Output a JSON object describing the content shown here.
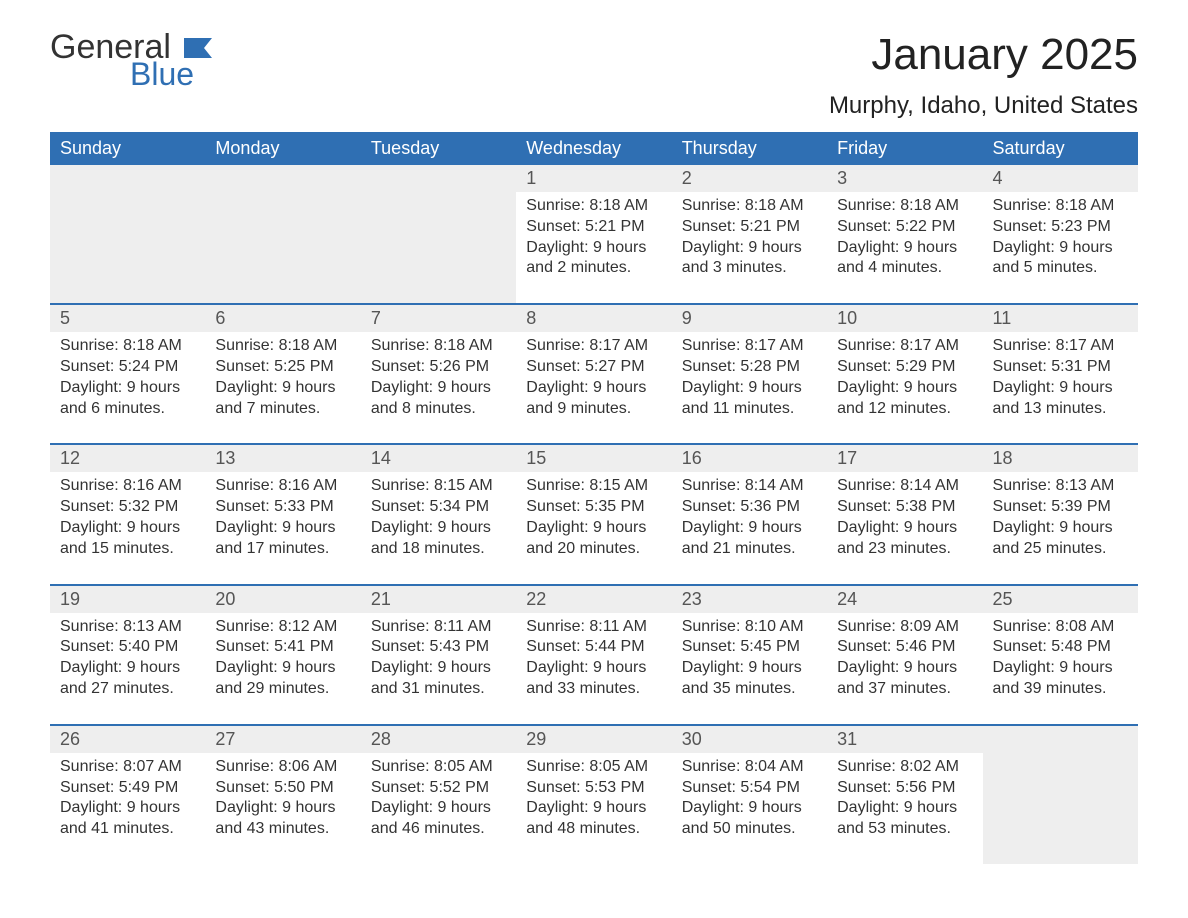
{
  "logo": {
    "text1": "General",
    "text2": "Blue",
    "flag_color": "#2f6fb3"
  },
  "title": "January 2025",
  "location": "Murphy, Idaho, United States",
  "colors": {
    "header_bg": "#2f6fb3",
    "header_fg": "#ffffff",
    "daynum_bg": "#eeeeee",
    "row_border": "#2f6fb3",
    "text": "#333333"
  },
  "typography": {
    "title_fontsize": 44,
    "location_fontsize": 24,
    "dow_fontsize": 18,
    "daynum_fontsize": 18,
    "body_fontsize": 16
  },
  "days_of_week": [
    "Sunday",
    "Monday",
    "Tuesday",
    "Wednesday",
    "Thursday",
    "Friday",
    "Saturday"
  ],
  "weeks": [
    [
      null,
      null,
      null,
      {
        "n": "1",
        "sunrise": "8:18 AM",
        "sunset": "5:21 PM",
        "daylight": "9 hours and 2 minutes."
      },
      {
        "n": "2",
        "sunrise": "8:18 AM",
        "sunset": "5:21 PM",
        "daylight": "9 hours and 3 minutes."
      },
      {
        "n": "3",
        "sunrise": "8:18 AM",
        "sunset": "5:22 PM",
        "daylight": "9 hours and 4 minutes."
      },
      {
        "n": "4",
        "sunrise": "8:18 AM",
        "sunset": "5:23 PM",
        "daylight": "9 hours and 5 minutes."
      }
    ],
    [
      {
        "n": "5",
        "sunrise": "8:18 AM",
        "sunset": "5:24 PM",
        "daylight": "9 hours and 6 minutes."
      },
      {
        "n": "6",
        "sunrise": "8:18 AM",
        "sunset": "5:25 PM",
        "daylight": "9 hours and 7 minutes."
      },
      {
        "n": "7",
        "sunrise": "8:18 AM",
        "sunset": "5:26 PM",
        "daylight": "9 hours and 8 minutes."
      },
      {
        "n": "8",
        "sunrise": "8:17 AM",
        "sunset": "5:27 PM",
        "daylight": "9 hours and 9 minutes."
      },
      {
        "n": "9",
        "sunrise": "8:17 AM",
        "sunset": "5:28 PM",
        "daylight": "9 hours and 11 minutes."
      },
      {
        "n": "10",
        "sunrise": "8:17 AM",
        "sunset": "5:29 PM",
        "daylight": "9 hours and 12 minutes."
      },
      {
        "n": "11",
        "sunrise": "8:17 AM",
        "sunset": "5:31 PM",
        "daylight": "9 hours and 13 minutes."
      }
    ],
    [
      {
        "n": "12",
        "sunrise": "8:16 AM",
        "sunset": "5:32 PM",
        "daylight": "9 hours and 15 minutes."
      },
      {
        "n": "13",
        "sunrise": "8:16 AM",
        "sunset": "5:33 PM",
        "daylight": "9 hours and 17 minutes."
      },
      {
        "n": "14",
        "sunrise": "8:15 AM",
        "sunset": "5:34 PM",
        "daylight": "9 hours and 18 minutes."
      },
      {
        "n": "15",
        "sunrise": "8:15 AM",
        "sunset": "5:35 PM",
        "daylight": "9 hours and 20 minutes."
      },
      {
        "n": "16",
        "sunrise": "8:14 AM",
        "sunset": "5:36 PM",
        "daylight": "9 hours and 21 minutes."
      },
      {
        "n": "17",
        "sunrise": "8:14 AM",
        "sunset": "5:38 PM",
        "daylight": "9 hours and 23 minutes."
      },
      {
        "n": "18",
        "sunrise": "8:13 AM",
        "sunset": "5:39 PM",
        "daylight": "9 hours and 25 minutes."
      }
    ],
    [
      {
        "n": "19",
        "sunrise": "8:13 AM",
        "sunset": "5:40 PM",
        "daylight": "9 hours and 27 minutes."
      },
      {
        "n": "20",
        "sunrise": "8:12 AM",
        "sunset": "5:41 PM",
        "daylight": "9 hours and 29 minutes."
      },
      {
        "n": "21",
        "sunrise": "8:11 AM",
        "sunset": "5:43 PM",
        "daylight": "9 hours and 31 minutes."
      },
      {
        "n": "22",
        "sunrise": "8:11 AM",
        "sunset": "5:44 PM",
        "daylight": "9 hours and 33 minutes."
      },
      {
        "n": "23",
        "sunrise": "8:10 AM",
        "sunset": "5:45 PM",
        "daylight": "9 hours and 35 minutes."
      },
      {
        "n": "24",
        "sunrise": "8:09 AM",
        "sunset": "5:46 PM",
        "daylight": "9 hours and 37 minutes."
      },
      {
        "n": "25",
        "sunrise": "8:08 AM",
        "sunset": "5:48 PM",
        "daylight": "9 hours and 39 minutes."
      }
    ],
    [
      {
        "n": "26",
        "sunrise": "8:07 AM",
        "sunset": "5:49 PM",
        "daylight": "9 hours and 41 minutes."
      },
      {
        "n": "27",
        "sunrise": "8:06 AM",
        "sunset": "5:50 PM",
        "daylight": "9 hours and 43 minutes."
      },
      {
        "n": "28",
        "sunrise": "8:05 AM",
        "sunset": "5:52 PM",
        "daylight": "9 hours and 46 minutes."
      },
      {
        "n": "29",
        "sunrise": "8:05 AM",
        "sunset": "5:53 PM",
        "daylight": "9 hours and 48 minutes."
      },
      {
        "n": "30",
        "sunrise": "8:04 AM",
        "sunset": "5:54 PM",
        "daylight": "9 hours and 50 minutes."
      },
      {
        "n": "31",
        "sunrise": "8:02 AM",
        "sunset": "5:56 PM",
        "daylight": "9 hours and 53 minutes."
      },
      null
    ]
  ],
  "labels": {
    "sunrise": "Sunrise:",
    "sunset": "Sunset:",
    "daylight": "Daylight:"
  }
}
